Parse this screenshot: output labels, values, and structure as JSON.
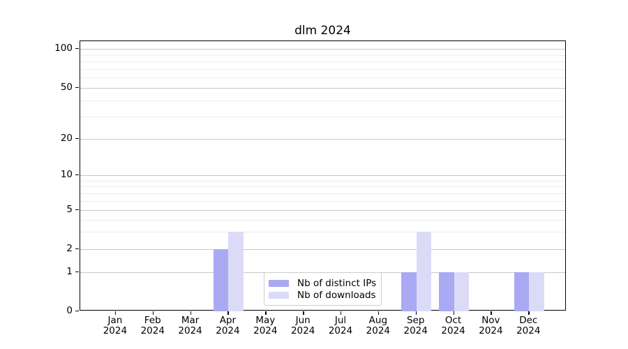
{
  "chart_data": {
    "type": "bar",
    "title": "dlm 2024",
    "categories": [
      "Jan",
      "Feb",
      "Mar",
      "Apr",
      "May",
      "Jun",
      "Jul",
      "Aug",
      "Sep",
      "Oct",
      "Nov",
      "Dec"
    ],
    "category_year": "2024",
    "series": [
      {
        "name": "Nb of distinct IPs",
        "color": "#a9a9f4",
        "values": [
          0,
          0,
          0,
          2,
          0,
          0,
          0,
          0,
          1,
          1,
          0,
          1
        ]
      },
      {
        "name": "Nb of downloads",
        "color": "#dbdbf8",
        "values": [
          0,
          0,
          0,
          3,
          0,
          0,
          0,
          0,
          3,
          1,
          0,
          1
        ]
      }
    ],
    "xlabel": "",
    "ylabel": "",
    "yscale": "symlog",
    "ylim": [
      0,
      115
    ],
    "y_major_ticks": [
      0,
      1,
      2,
      5,
      10,
      20,
      50,
      100
    ],
    "y_minor_ticks": [
      3,
      4,
      6,
      7,
      8,
      9,
      30,
      40,
      60,
      70,
      80,
      90
    ],
    "grid": true,
    "legend": {
      "position": "lower center",
      "border_color": "#cccccc"
    }
  },
  "colors": {
    "spine": "#000000",
    "major_grid": "#c8c8c8",
    "minor_grid": "#ededed",
    "background": "#ffffff"
  }
}
